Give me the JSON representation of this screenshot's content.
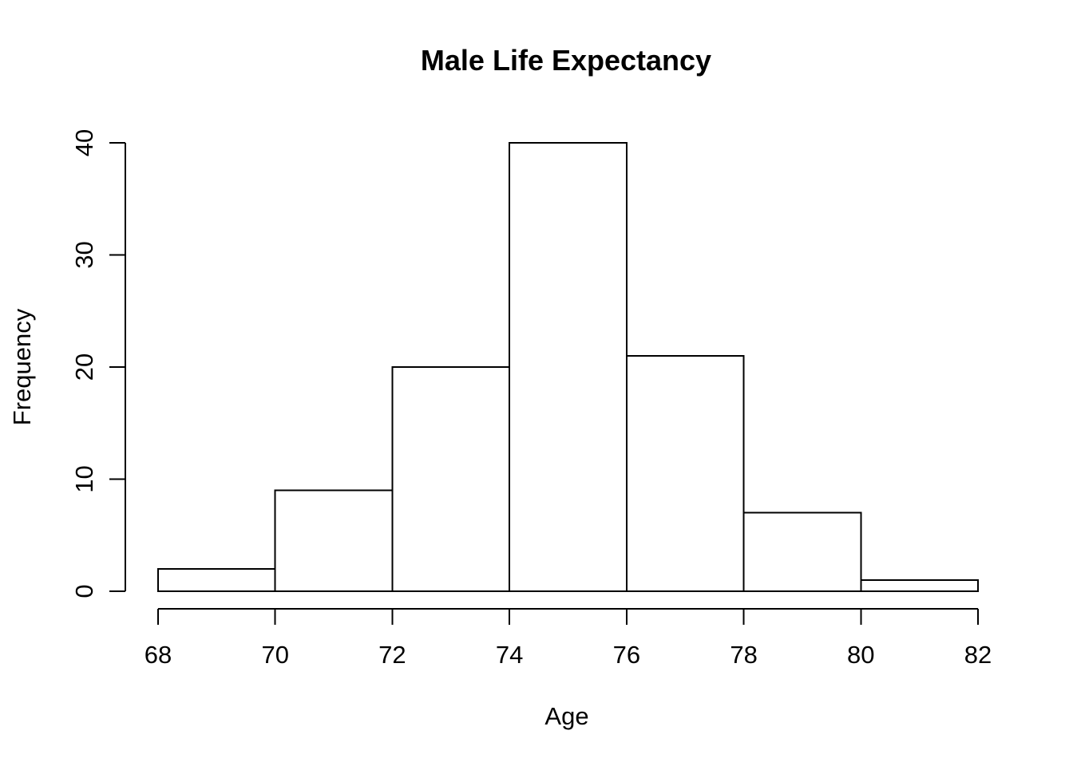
{
  "chart_data": {
    "type": "bar",
    "subtype": "histogram",
    "title": "Male Life Expectancy",
    "xlabel": "Age",
    "ylabel": "Frequency",
    "bin_edges": [
      68,
      70,
      72,
      74,
      76,
      78,
      80,
      82
    ],
    "counts": [
      2,
      9,
      20,
      40,
      21,
      7,
      1
    ],
    "x_ticks": [
      68,
      70,
      72,
      74,
      76,
      78,
      80,
      82
    ],
    "y_ticks": [
      0,
      10,
      20,
      30,
      40
    ],
    "xlim": [
      68,
      82
    ],
    "ylim": [
      0,
      40
    ],
    "grid": false,
    "legend": "none",
    "colors": {
      "bar_fill": "#ffffff",
      "bar_stroke": "#000000",
      "axis": "#000000",
      "text": "#000000",
      "background": "#ffffff"
    }
  }
}
